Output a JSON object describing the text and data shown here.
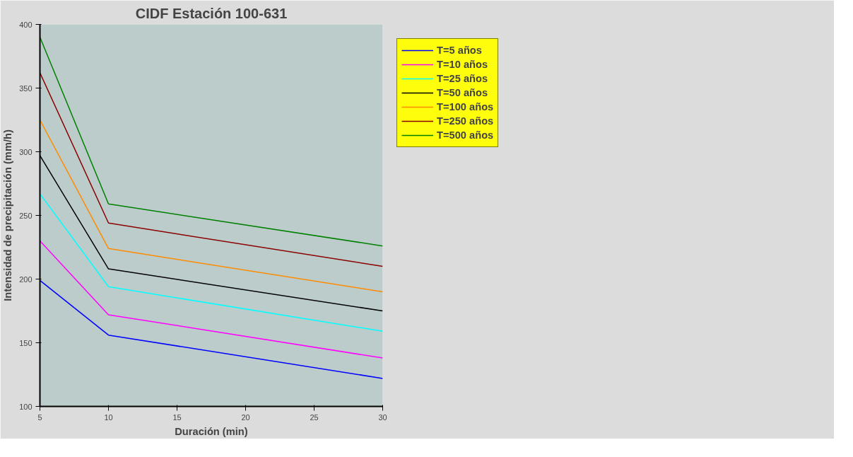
{
  "chart_data": {
    "type": "line",
    "title": "CIDF Estación 100-631",
    "xlabel": "Duración (min)",
    "ylabel": "Intensidad de precipitación (mm/h)",
    "x": [
      5,
      10,
      30
    ],
    "series": [
      {
        "name": "T=5 años",
        "color": "#0000ff",
        "values": [
          199,
          156,
          122
        ]
      },
      {
        "name": "T=10 años",
        "color": "#ff00ff",
        "values": [
          230,
          172,
          138
        ]
      },
      {
        "name": "T=25 años",
        "color": "#00ffff",
        "values": [
          267,
          194,
          159
        ]
      },
      {
        "name": "T=50 años",
        "color": "#000000",
        "values": [
          297,
          208,
          175
        ]
      },
      {
        "name": "T=100 años",
        "color": "#ff8c00",
        "values": [
          325,
          224,
          190
        ]
      },
      {
        "name": "T=250 años",
        "color": "#8b0000",
        "values": [
          362,
          244,
          210
        ]
      },
      {
        "name": "T=500 años",
        "color": "#008000",
        "values": [
          390,
          259,
          226
        ]
      }
    ],
    "xlim": [
      5,
      30
    ],
    "xticks": [
      5,
      10,
      15,
      20,
      25,
      30
    ],
    "ylim": [
      100,
      400
    ],
    "yticks": [
      100,
      150,
      200,
      250,
      300,
      350,
      400
    ],
    "grid": false,
    "legend": "top right",
    "marker": "none",
    "line_style": "solid"
  }
}
